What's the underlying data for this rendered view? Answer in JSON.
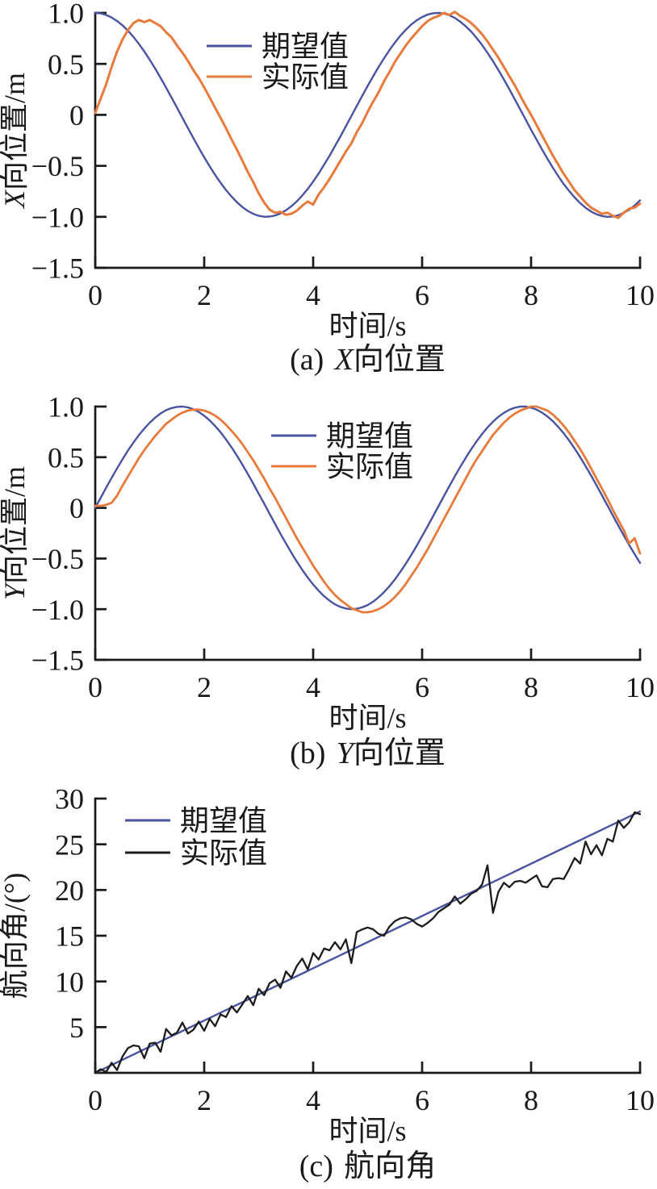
{
  "figure": {
    "background": "#ffffff",
    "text_color": "#1a1a1a"
  },
  "chart_data": [
    {
      "id": "a",
      "type": "line",
      "caption": {
        "index": "(a)",
        "variable": "X",
        "label": "向位置"
      },
      "xlabel": "时间/s",
      "ylabel": {
        "variable": "X",
        "label": "向位置/m"
      },
      "x_range": [
        0,
        10
      ],
      "y_range": [
        -1.5,
        1.0
      ],
      "x_ticks": [
        {
          "v": 0,
          "label": "0"
        },
        {
          "v": 2,
          "label": "2"
        },
        {
          "v": 4,
          "label": "4"
        },
        {
          "v": 6,
          "label": "6"
        },
        {
          "v": 8,
          "label": "8"
        },
        {
          "v": 10,
          "label": "10"
        }
      ],
      "y_ticks": [
        {
          "v": 1.0,
          "label": "1.0"
        },
        {
          "v": 0.5,
          "label": "0.5"
        },
        {
          "v": 0,
          "label": "0"
        },
        {
          "v": -0.5,
          "label": "−0.5"
        },
        {
          "v": -1.0,
          "label": "−1.0"
        },
        {
          "v": -1.5,
          "label": "−1.5"
        }
      ],
      "grid": false,
      "legend_position": "upper-center",
      "legend": [
        {
          "label": "期望值",
          "color": "#4a53a0"
        },
        {
          "label": "实际值",
          "color": "#e87a3c"
        }
      ],
      "axis_color": "#1a1a1a",
      "series": [
        {
          "name": "期望值",
          "color": "#4a53a0",
          "width": 2.4,
          "x0": 0,
          "dx": 0.1,
          "y": [
            1.0,
            0.995,
            0.98,
            0.955,
            0.921,
            0.878,
            0.825,
            0.765,
            0.697,
            0.622,
            0.54,
            0.454,
            0.362,
            0.267,
            0.17,
            0.071,
            -0.029,
            -0.129,
            -0.227,
            -0.323,
            -0.416,
            -0.505,
            -0.589,
            -0.666,
            -0.737,
            -0.801,
            -0.857,
            -0.904,
            -0.942,
            -0.971,
            -0.99,
            -0.999,
            -0.998,
            -0.987,
            -0.967,
            -0.936,
            -0.896,
            -0.848,
            -0.791,
            -0.726,
            -0.654,
            -0.575,
            -0.49,
            -0.401,
            -0.307,
            -0.211,
            -0.112,
            -0.012,
            0.087,
            0.187,
            0.284,
            0.378,
            0.469,
            0.554,
            0.635,
            0.709,
            0.776,
            0.835,
            0.886,
            0.927,
            0.96,
            0.983,
            0.997,
            1.0,
            0.993,
            0.977,
            0.951,
            0.914,
            0.869,
            0.817,
            0.754,
            0.685,
            0.608,
            0.526,
            0.439,
            0.347,
            0.252,
            0.153,
            0.054,
            -0.046,
            -0.146,
            -0.243,
            -0.339,
            -0.431,
            -0.519,
            -0.602,
            -0.68,
            -0.748,
            -0.811,
            -0.865,
            -0.911,
            -0.948,
            -0.975,
            -0.992,
            -1.0,
            -0.997,
            -0.985,
            -0.962,
            -0.93,
            -0.889,
            -0.839
          ]
        },
        {
          "name": "实际值",
          "color": "#e87a3c",
          "width": 3,
          "x0": 0,
          "dx": 0.1,
          "y": [
            0.02,
            0.16,
            0.3,
            0.47,
            0.62,
            0.74,
            0.83,
            0.9,
            0.93,
            0.91,
            0.93,
            0.9,
            0.87,
            0.81,
            0.76,
            0.68,
            0.61,
            0.53,
            0.44,
            0.36,
            0.27,
            0.17,
            0.07,
            -0.03,
            -0.13,
            -0.24,
            -0.34,
            -0.45,
            -0.56,
            -0.66,
            -0.77,
            -0.86,
            -0.93,
            -0.96,
            -0.95,
            -0.98,
            -0.97,
            -0.94,
            -0.89,
            -0.85,
            -0.88,
            -0.78,
            -0.71,
            -0.63,
            -0.54,
            -0.45,
            -0.36,
            -0.28,
            -0.17,
            -0.08,
            0.03,
            0.13,
            0.22,
            0.33,
            0.42,
            0.52,
            0.6,
            0.68,
            0.75,
            0.81,
            0.87,
            0.92,
            0.95,
            0.97,
            1.0,
            0.98,
            1.01,
            0.97,
            0.94,
            0.9,
            0.85,
            0.79,
            0.72,
            0.64,
            0.56,
            0.47,
            0.38,
            0.29,
            0.19,
            0.09,
            0.0,
            -0.1,
            -0.2,
            -0.3,
            -0.4,
            -0.49,
            -0.58,
            -0.66,
            -0.74,
            -0.8,
            -0.86,
            -0.91,
            -0.94,
            -0.97,
            -0.96,
            -0.99,
            -1.01,
            -0.96,
            -0.92,
            -0.91,
            -0.87
          ]
        }
      ]
    },
    {
      "id": "b",
      "type": "line",
      "caption": {
        "index": "(b)",
        "variable": "Y",
        "label": "向位置"
      },
      "xlabel": "时间/s",
      "ylabel": {
        "variable": "Y",
        "label": "向位置/m"
      },
      "x_range": [
        0,
        10
      ],
      "y_range": [
        -1.5,
        1.0
      ],
      "x_ticks": [
        {
          "v": 0,
          "label": "0"
        },
        {
          "v": 2,
          "label": "2"
        },
        {
          "v": 4,
          "label": "4"
        },
        {
          "v": 6,
          "label": "6"
        },
        {
          "v": 8,
          "label": "8"
        },
        {
          "v": 10,
          "label": "10"
        }
      ],
      "y_ticks": [
        {
          "v": 1.0,
          "label": "1.0"
        },
        {
          "v": 0.5,
          "label": "0.5"
        },
        {
          "v": 0,
          "label": "0"
        },
        {
          "v": -0.5,
          "label": "−0.5"
        },
        {
          "v": -1.0,
          "label": "−1.0"
        },
        {
          "v": -1.5,
          "label": "−1.5"
        }
      ],
      "grid": false,
      "legend_position": "upper-center",
      "legend": [
        {
          "label": "期望值",
          "color": "#4a53a0"
        },
        {
          "label": "实际值",
          "color": "#e87a3c"
        }
      ],
      "axis_color": "#1a1a1a",
      "series": [
        {
          "name": "期望值",
          "color": "#4a53a0",
          "width": 2.4,
          "x0": 0,
          "dx": 0.1,
          "y": [
            0.0,
            0.1,
            0.199,
            0.296,
            0.389,
            0.479,
            0.565,
            0.644,
            0.717,
            0.783,
            0.841,
            0.891,
            0.932,
            0.964,
            0.985,
            0.997,
            1.0,
            0.992,
            0.974,
            0.947,
            0.909,
            0.863,
            0.808,
            0.746,
            0.675,
            0.599,
            0.516,
            0.427,
            0.335,
            0.239,
            0.141,
            0.042,
            -0.058,
            -0.158,
            -0.256,
            -0.351,
            -0.443,
            -0.53,
            -0.612,
            -0.688,
            -0.757,
            -0.818,
            -0.872,
            -0.916,
            -0.952,
            -0.978,
            -0.994,
            -1.0,
            -0.996,
            -0.982,
            -0.959,
            -0.926,
            -0.883,
            -0.832,
            -0.773,
            -0.706,
            -0.631,
            -0.551,
            -0.465,
            -0.374,
            -0.279,
            -0.182,
            -0.083,
            0.017,
            0.116,
            0.215,
            0.312,
            0.405,
            0.494,
            0.579,
            0.657,
            0.729,
            0.794,
            0.85,
            0.899,
            0.938,
            0.968,
            0.989,
            0.999,
            1.0,
            0.989,
            0.97,
            0.94,
            0.902,
            0.855,
            0.798,
            0.735,
            0.663,
            0.585,
            0.501,
            0.412,
            0.319,
            0.223,
            0.124,
            0.025,
            -0.075,
            -0.174,
            -0.271,
            -0.366,
            -0.457,
            -0.544
          ]
        },
        {
          "name": "实际值",
          "color": "#e87a3c",
          "width": 2.8,
          "x0": 0,
          "dx": 0.1,
          "y": [
            0.02,
            0.02,
            0.03,
            0.05,
            0.12,
            0.22,
            0.31,
            0.4,
            0.49,
            0.57,
            0.64,
            0.71,
            0.77,
            0.83,
            0.87,
            0.91,
            0.94,
            0.96,
            0.97,
            0.97,
            0.96,
            0.94,
            0.91,
            0.87,
            0.82,
            0.76,
            0.7,
            0.63,
            0.55,
            0.47,
            0.38,
            0.29,
            0.19,
            0.1,
            0.0,
            -0.1,
            -0.2,
            -0.3,
            -0.39,
            -0.48,
            -0.57,
            -0.65,
            -0.73,
            -0.8,
            -0.86,
            -0.91,
            -0.95,
            -0.99,
            -1.01,
            -1.03,
            -1.03,
            -1.02,
            -1.0,
            -0.97,
            -0.93,
            -0.88,
            -0.82,
            -0.75,
            -0.67,
            -0.59,
            -0.5,
            -0.41,
            -0.31,
            -0.21,
            -0.11,
            -0.01,
            0.09,
            0.19,
            0.29,
            0.39,
            0.48,
            0.56,
            0.64,
            0.72,
            0.78,
            0.84,
            0.89,
            0.93,
            0.96,
            0.98,
            1.0,
            1.0,
            0.98,
            0.96,
            0.92,
            0.87,
            0.81,
            0.74,
            0.66,
            0.58,
            0.49,
            0.39,
            0.29,
            0.19,
            0.09,
            -0.02,
            -0.12,
            -0.22,
            -0.35,
            -0.3,
            -0.45
          ]
        }
      ]
    },
    {
      "id": "c",
      "type": "line",
      "caption": {
        "index": "(c)",
        "variable": "",
        "label": "航向角"
      },
      "xlabel": "时间/s",
      "ylabel": {
        "variable": "",
        "label": "航向角/(°)"
      },
      "x_range": [
        0,
        10
      ],
      "y_range": [
        0,
        30
      ],
      "x_ticks": [
        {
          "v": 0,
          "label": "0"
        },
        {
          "v": 2,
          "label": "2"
        },
        {
          "v": 4,
          "label": "4"
        },
        {
          "v": 6,
          "label": "6"
        },
        {
          "v": 8,
          "label": "8"
        },
        {
          "v": 10,
          "label": "10"
        }
      ],
      "y_ticks": [
        {
          "v": 30,
          "label": "30"
        },
        {
          "v": 25,
          "label": "25"
        },
        {
          "v": 20,
          "label": "20"
        },
        {
          "v": 15,
          "label": "15"
        },
        {
          "v": 10,
          "label": "10"
        },
        {
          "v": 5,
          "label": "5"
        }
      ],
      "grid": false,
      "legend_position": "upper-left",
      "legend": [
        {
          "label": "期望值",
          "color": "#4a53a0"
        },
        {
          "label": "实际值",
          "color": "#1c1c1c"
        }
      ],
      "axis_color": "#1a1a1a",
      "series": [
        {
          "name": "期望值",
          "color": "#4a53a0",
          "width": 2.4,
          "x0": 0,
          "dx": 10,
          "y": [
            0,
            28.6
          ]
        },
        {
          "name": "实际值",
          "color": "#1c1c1c",
          "width": 2.3,
          "x0": 0,
          "dx": 0.1,
          "y": [
            0.0,
            0.4,
            0.1,
            1.1,
            0.3,
            1.8,
            2.7,
            3.0,
            2.9,
            1.6,
            3.2,
            3.3,
            2.3,
            4.8,
            4.1,
            4.4,
            5.5,
            4.3,
            4.7,
            5.6,
            4.6,
            5.9,
            5.1,
            6.4,
            6.1,
            7.3,
            6.6,
            7.5,
            8.4,
            7.4,
            9.2,
            8.5,
            9.8,
            10.2,
            9.3,
            11.1,
            10.4,
            11.7,
            12.5,
            11.3,
            13.1,
            12.4,
            13.6,
            13.4,
            14.3,
            13.5,
            14.6,
            12.0,
            15.4,
            15.7,
            15.9,
            15.7,
            15.2,
            15.0,
            16.0,
            16.6,
            16.9,
            17.0,
            16.8,
            16.3,
            16.0,
            16.4,
            16.9,
            17.6,
            18.0,
            18.4,
            19.3,
            18.5,
            19.0,
            19.6,
            19.9,
            20.6,
            22.7,
            17.5,
            19.8,
            20.8,
            20.3,
            20.9,
            21.0,
            20.8,
            21.2,
            21.6,
            20.4,
            20.3,
            21.2,
            21.3,
            21.2,
            22.3,
            23.5,
            22.9,
            25.3,
            23.9,
            24.9,
            23.8,
            25.6,
            25.3,
            27.6,
            26.8,
            27.4,
            28.5,
            28.3
          ]
        }
      ]
    }
  ]
}
